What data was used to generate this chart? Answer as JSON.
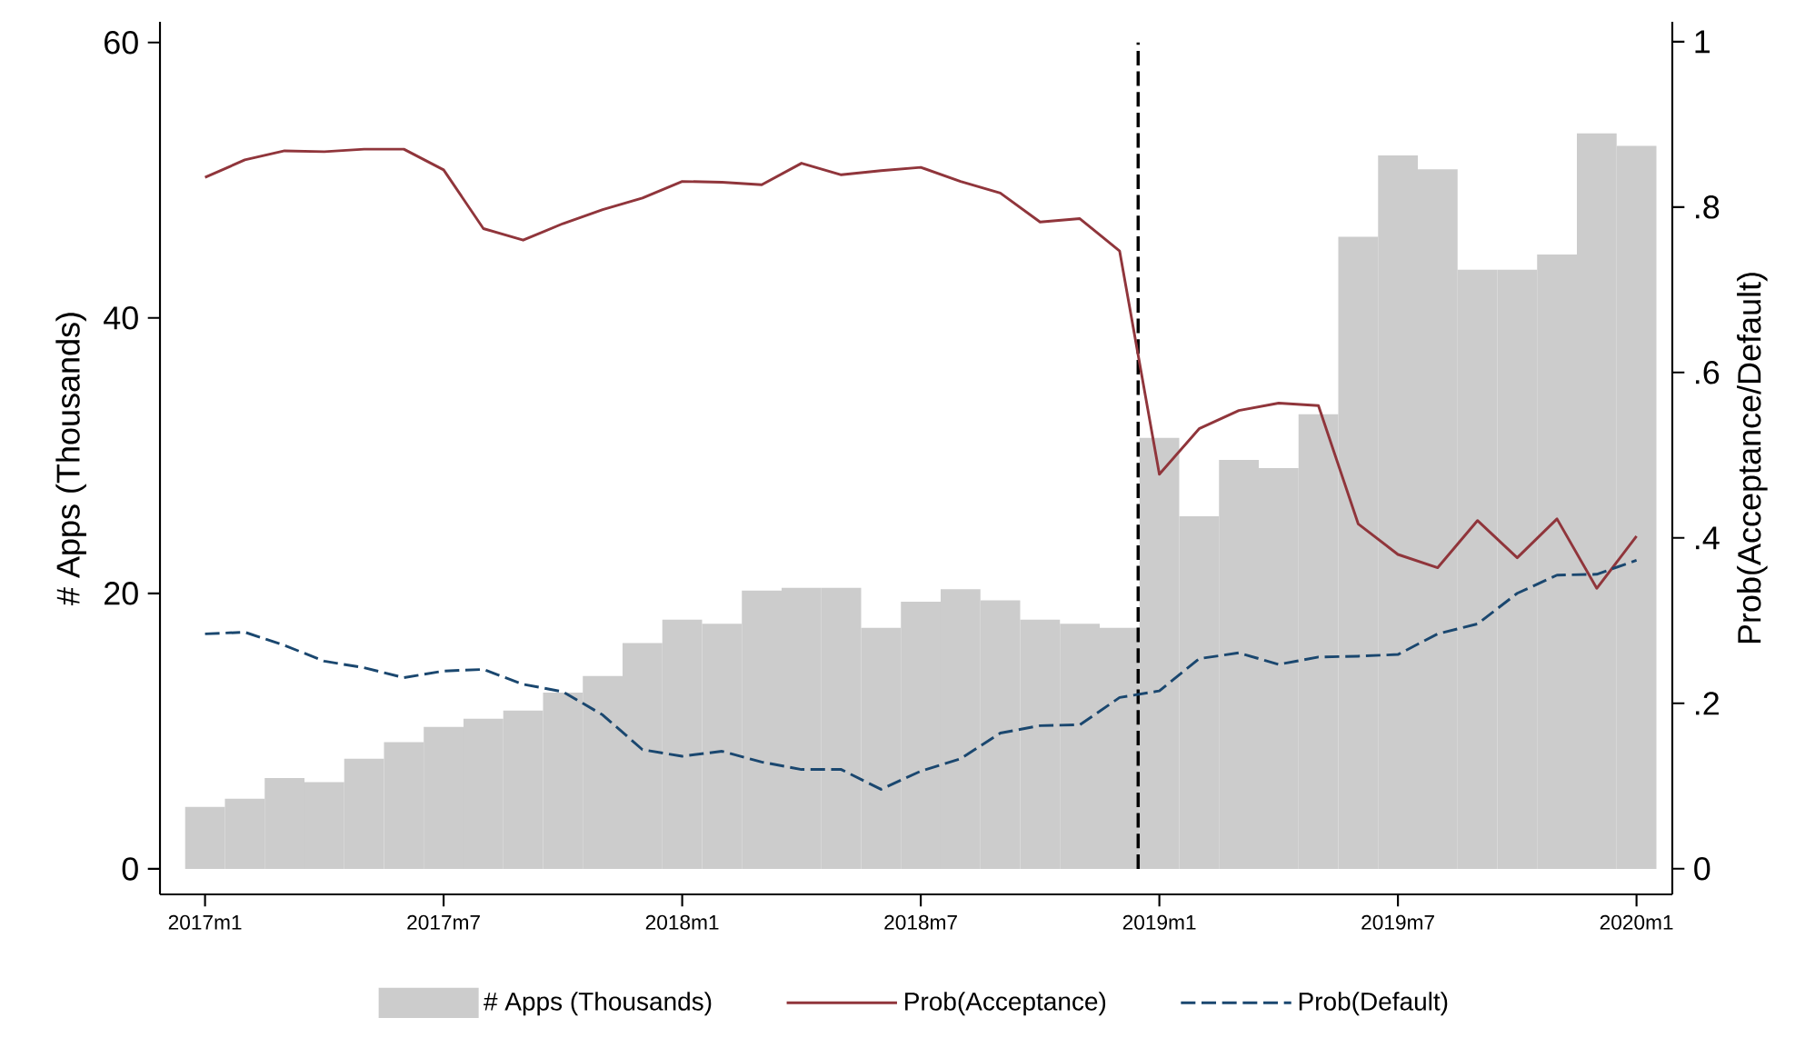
{
  "chart_data": {
    "type": "bar",
    "ylabel": "# Apps (Thousands)",
    "y2label": "Prob(Acceptance/Default)",
    "x": [
      "2017-01",
      "2017-02",
      "2017-03",
      "2017-04",
      "2017-05",
      "2017-06",
      "2017-07",
      "2017-08",
      "2017-09",
      "2017-10",
      "2017-11",
      "2017-12",
      "2018-01",
      "2018-02",
      "2018-03",
      "2018-04",
      "2018-05",
      "2018-06",
      "2018-07",
      "2018-08",
      "2018-09",
      "2018-10",
      "2018-11",
      "2018-12",
      "2019-01",
      "2019-02",
      "2019-03",
      "2019-04",
      "2019-05",
      "2019-06",
      "2019-07",
      "2019-08",
      "2019-09",
      "2019-10",
      "2019-11",
      "2019-12",
      "2020-01"
    ],
    "xlim": [
      "2016-11-27",
      "2020-01-28"
    ],
    "xticks": [
      {
        "value": "2017-01",
        "label": "2017m1"
      },
      {
        "value": "2017-07",
        "label": "2017m7"
      },
      {
        "value": "2018-01",
        "label": "2018m1"
      },
      {
        "value": "2018-07",
        "label": "2018m7"
      },
      {
        "value": "2019-01",
        "label": "2019m1"
      },
      {
        "value": "2019-07",
        "label": "2019m7"
      },
      {
        "value": "2020-01",
        "label": "2020m1"
      }
    ],
    "ylim": [
      -1.85,
      61.5
    ],
    "yticks": [
      0,
      20,
      40,
      60
    ],
    "y2lim": [
      -0.031,
      1.024
    ],
    "y2ticks": [
      0,
      {
        "value": 0.2,
        "label": ".2"
      },
      {
        "value": 0.4,
        "label": ".4"
      },
      {
        "value": 0.6,
        "label": ".6"
      },
      {
        "value": 0.8,
        "label": ".8"
      },
      1
    ],
    "series": [
      {
        "name": "# Apps (Thousands)",
        "color": "#cccccc",
        "values": [
          4.5,
          5.1,
          6.6,
          6.3,
          8.0,
          9.2,
          10.3,
          10.9,
          11.5,
          12.8,
          14.0,
          16.4,
          18.1,
          17.8,
          20.2,
          20.4,
          20.4,
          17.5,
          19.4,
          20.3,
          19.5,
          18.1,
          17.8,
          17.5,
          31.3,
          25.6,
          29.7,
          29.1,
          33.0,
          45.9,
          51.8,
          50.8,
          43.5,
          43.5,
          44.6,
          53.4,
          52.5
        ]
      },
      {
        "name": "Prob(Acceptance)",
        "type": "line",
        "axis": "y2",
        "color": "#90353b",
        "line_style": "solid",
        "values": [
          0.836,
          0.857,
          0.868,
          0.867,
          0.87,
          0.87,
          0.845,
          0.774,
          0.76,
          0.78,
          0.797,
          0.811,
          0.831,
          0.83,
          0.827,
          0.853,
          0.839,
          0.844,
          0.848,
          0.831,
          0.817,
          0.782,
          0.786,
          0.747,
          0.477,
          0.532,
          0.554,
          0.563,
          0.56,
          0.417,
          0.38,
          0.364,
          0.421,
          0.376,
          0.423,
          0.339,
          0.402
        ]
      },
      {
        "name": "Prob(Default)",
        "type": "line",
        "axis": "y2",
        "color": "#1a476f",
        "line_style": "dashed",
        "values": [
          0.284,
          0.286,
          0.27,
          0.251,
          0.243,
          0.231,
          0.239,
          0.241,
          0.223,
          0.214,
          0.186,
          0.144,
          0.136,
          0.142,
          0.129,
          0.12,
          0.12,
          0.096,
          0.118,
          0.133,
          0.164,
          0.173,
          0.174,
          0.207,
          0.215,
          0.254,
          0.261,
          0.247,
          0.256,
          0.257,
          0.259,
          0.284,
          0.296,
          0.333,
          0.355,
          0.356,
          0.373
        ]
      }
    ],
    "ref_lines": [
      {
        "axis": "x",
        "value": "2018-12-15",
        "color": "#000000",
        "line_style": "dashed"
      }
    ],
    "legend": "bottom"
  }
}
